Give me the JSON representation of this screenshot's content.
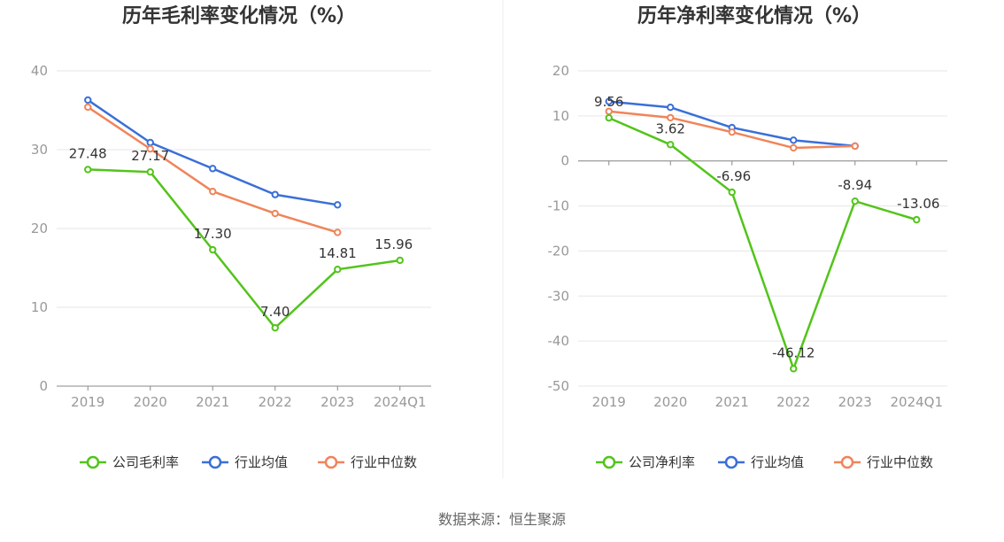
{
  "source": "数据来源：恒生聚源",
  "legend_colors": {
    "company": "#52c41a",
    "avg": "#3a6fd8",
    "median": "#f0845a"
  },
  "chart_data": [
    {
      "type": "line",
      "title": "历年毛利率变化情况（%）",
      "categories": [
        "2019",
        "2020",
        "2021",
        "2022",
        "2023",
        "2024Q1"
      ],
      "ylim": [
        0,
        40
      ],
      "yticks": [
        0,
        10,
        20,
        30,
        40
      ],
      "grid": true,
      "legend_position": "bottom",
      "series": [
        {
          "name": "公司毛利率",
          "color": "#52c41a",
          "values": [
            27.48,
            27.17,
            17.3,
            7.4,
            14.81,
            15.96
          ],
          "labels": [
            "27.48",
            "27.17",
            "17.30",
            "7.40",
            "14.81",
            "15.96"
          ]
        },
        {
          "name": "行业均值",
          "color": "#3a6fd8",
          "values": [
            36.3,
            30.9,
            27.6,
            24.3,
            23.0,
            null
          ]
        },
        {
          "name": "行业中位数",
          "color": "#f0845a",
          "values": [
            35.4,
            30.1,
            24.7,
            21.9,
            19.5,
            null
          ]
        }
      ]
    },
    {
      "type": "line",
      "title": "历年净利率变化情况（%）",
      "categories": [
        "2019",
        "2020",
        "2021",
        "2022",
        "2023",
        "2024Q1"
      ],
      "ylim": [
        -50,
        20
      ],
      "yticks": [
        -50,
        -40,
        -30,
        -20,
        -10,
        0,
        10,
        20
      ],
      "grid": true,
      "legend_position": "bottom",
      "series": [
        {
          "name": "公司净利率",
          "color": "#52c41a",
          "values": [
            9.56,
            3.62,
            -6.96,
            -46.12,
            -8.94,
            -13.06
          ],
          "labels": [
            "9.56",
            "3.62",
            "-6.96",
            "-46.12",
            "-8.94",
            "-13.06"
          ]
        },
        {
          "name": "行业均值",
          "color": "#3a6fd8",
          "values": [
            13.2,
            11.9,
            7.4,
            4.6,
            3.3,
            null
          ]
        },
        {
          "name": "行业中位数",
          "color": "#f0845a",
          "values": [
            11.0,
            9.6,
            6.4,
            2.9,
            3.3,
            null
          ]
        }
      ]
    }
  ]
}
